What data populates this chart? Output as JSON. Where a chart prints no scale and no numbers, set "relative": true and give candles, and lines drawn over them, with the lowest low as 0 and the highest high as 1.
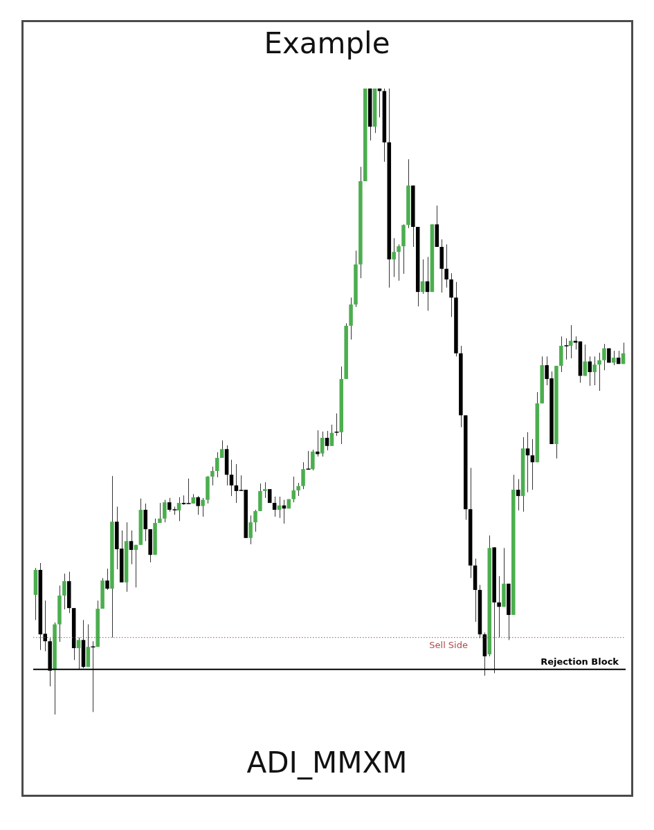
{
  "chart_data": {
    "type": "candlestick",
    "title": "Example",
    "relative": true,
    "categories": [
      null,
      null,
      null,
      null,
      null,
      null,
      null,
      null,
      null,
      null,
      null,
      null,
      null,
      null,
      null,
      null,
      null,
      null,
      null,
      null,
      null,
      null,
      null,
      null,
      null,
      null,
      null,
      null,
      null,
      null,
      null,
      null,
      null,
      null,
      null,
      null,
      null,
      null,
      null,
      null,
      null,
      null,
      null,
      null,
      null,
      null,
      null,
      null,
      null,
      null,
      null,
      null,
      null,
      null,
      null,
      null,
      null,
      null,
      null,
      null,
      null,
      null,
      null,
      null,
      null,
      null,
      null,
      null,
      null,
      null,
      null,
      null,
      null,
      null,
      null,
      null,
      null,
      null,
      null,
      null,
      null,
      null,
      null,
      null,
      null,
      null,
      null,
      null,
      null,
      null,
      null,
      null,
      null,
      null,
      null,
      null,
      null,
      null,
      null,
      null,
      null,
      null,
      null,
      null,
      null,
      null,
      null,
      null,
      null,
      null,
      null,
      null,
      null,
      null,
      null,
      null,
      null,
      null,
      null,
      null,
      null,
      null,
      null,
      null
    ],
    "ohlc": [
      [
        0.191,
        0.234,
        0.151,
        0.231
      ],
      [
        0.231,
        0.242,
        0.103,
        0.128
      ],
      [
        0.129,
        0.182,
        0.101,
        0.117
      ],
      [
        0.117,
        0.122,
        0.045,
        0.07
      ],
      [
        0.071,
        0.147,
        0,
        0.144
      ],
      [
        0.144,
        0.206,
        0.116,
        0.19
      ],
      [
        0.19,
        0.225,
        0.168,
        0.213
      ],
      [
        0.213,
        0.228,
        0.162,
        0.17
      ],
      [
        0.17,
        0.17,
        0.087,
        0.106
      ],
      [
        0.106,
        0.123,
        0.072,
        0.119
      ],
      [
        0.119,
        0.151,
        0.074,
        0.076
      ],
      [
        0.076,
        0.144,
        0.076,
        0.108
      ],
      [
        0.108,
        0.117,
        0.004,
        0.108
      ],
      [
        0.108,
        0.182,
        0.108,
        0.169
      ],
      [
        0.169,
        0.218,
        0.169,
        0.214
      ],
      [
        0.214,
        0.233,
        0.199,
        0.201
      ],
      [
        0.201,
        0.381,
        0.123,
        0.308
      ],
      [
        0.308,
        0.332,
        0.232,
        0.264
      ],
      [
        0.265,
        0.294,
        0.211,
        0.211
      ],
      [
        0.211,
        0.307,
        0.196,
        0.277
      ],
      [
        0.277,
        0.294,
        0.24,
        0.263
      ],
      [
        0.263,
        0.271,
        0.203,
        0.271
      ],
      [
        0.271,
        0.345,
        0.271,
        0.327
      ],
      [
        0.327,
        0.337,
        0.277,
        0.296
      ],
      [
        0.296,
        0.296,
        0.243,
        0.255
      ],
      [
        0.255,
        0.313,
        0.255,
        0.306
      ],
      [
        0.306,
        0.338,
        0.306,
        0.313
      ],
      [
        0.313,
        0.343,
        0.307,
        0.339
      ],
      [
        0.339,
        0.346,
        0.324,
        0.327
      ],
      [
        0.327,
        0.332,
        0.319,
        0.327
      ],
      [
        0.326,
        0.347,
        0.309,
        0.338
      ],
      [
        0.338,
        0.35,
        0.335,
        0.336
      ],
      [
        0.337,
        0.377,
        0.337,
        0.337
      ],
      [
        0.337,
        0.352,
        0.337,
        0.347
      ],
      [
        0.347,
        0.349,
        0.319,
        0.333
      ],
      [
        0.333,
        0.346,
        0.316,
        0.343
      ],
      [
        0.343,
        0.381,
        0.337,
        0.38
      ],
      [
        0.38,
        0.396,
        0.366,
        0.389
      ],
      [
        0.389,
        0.419,
        0.379,
        0.41
      ],
      [
        0.41,
        0.438,
        0.41,
        0.424
      ],
      [
        0.424,
        0.43,
        0.366,
        0.383
      ],
      [
        0.383,
        0.407,
        0.349,
        0.366
      ],
      [
        0.366,
        0.4,
        0.338,
        0.357
      ],
      [
        0.358,
        0.382,
        0.357,
        0.358
      ],
      [
        0.359,
        0.359,
        0.282,
        0.282
      ],
      [
        0.282,
        0.318,
        0.272,
        0.307
      ],
      [
        0.307,
        0.327,
        0.292,
        0.325
      ],
      [
        0.325,
        0.369,
        0.325,
        0.357
      ],
      [
        0.357,
        0.371,
        0.346,
        0.36
      ],
      [
        0.36,
        0.36,
        0.338,
        0.338
      ],
      [
        0.338,
        0.348,
        0.316,
        0.327
      ],
      [
        0.327,
        0.348,
        0.314,
        0.334
      ],
      [
        0.334,
        0.343,
        0.305,
        0.329
      ],
      [
        0.329,
        0.344,
        0.329,
        0.344
      ],
      [
        0.344,
        0.38,
        0.339,
        0.358
      ],
      [
        0.358,
        0.37,
        0.349,
        0.365
      ],
      [
        0.365,
        0.403,
        0.36,
        0.392
      ],
      [
        0.392,
        0.421,
        0.391,
        0.392
      ],
      [
        0.392,
        0.423,
        0.39,
        0.42
      ],
      [
        0.42,
        0.454,
        0.412,
        0.416
      ],
      [
        0.417,
        0.452,
        0.412,
        0.442
      ],
      [
        0.442,
        0.453,
        0.422,
        0.429
      ],
      [
        0.429,
        0.463,
        0.429,
        0.45
      ],
      [
        0.451,
        0.481,
        0.445,
        0.451
      ],
      [
        0.451,
        0.556,
        0.432,
        0.536
      ],
      [
        0.536,
        0.625,
        0.536,
        0.621
      ],
      [
        0.621,
        0.666,
        0.599,
        0.655
      ],
      [
        0.655,
        0.741,
        0.651,
        0.719
      ],
      [
        0.719,
        0.875,
        0.697,
        0.852
      ],
      [
        0.852,
        1,
        0.852,
        1
      ],
      [
        1,
        1,
        0.917,
        0.939
      ],
      [
        0.939,
        1,
        0.929,
        1
      ],
      [
        1,
        1,
        0.954,
        0.996
      ],
      [
        0.996,
        1,
        0.883,
        0.914
      ],
      [
        0.914,
        1,
        0.682,
        0.727
      ],
      [
        0.727,
        0.761,
        0.699,
        0.739
      ],
      [
        0.739,
        0.751,
        0.693,
        0.748
      ],
      [
        0.748,
        0.783,
        0.704,
        0.782
      ],
      [
        0.782,
        0.887,
        0.777,
        0.845
      ],
      [
        0.845,
        0.845,
        0.747,
        0.779
      ],
      [
        0.779,
        0.779,
        0.652,
        0.675
      ],
      [
        0.675,
        0.727,
        0.672,
        0.692
      ],
      [
        0.692,
        0.731,
        0.645,
        0.675
      ],
      [
        0.675,
        0.783,
        0.675,
        0.783
      ],
      [
        0.783,
        0.813,
        0.747,
        0.747
      ],
      [
        0.747,
        0.759,
        0.674,
        0.712
      ],
      [
        0.712,
        0.751,
        0.682,
        0.695
      ],
      [
        0.695,
        0.705,
        0.635,
        0.666
      ],
      [
        0.666,
        0.691,
        0.572,
        0.577
      ],
      [
        0.577,
        0.589,
        0.459,
        0.478
      ],
      [
        0.478,
        0.478,
        0.311,
        0.328
      ],
      [
        0.328,
        0.394,
        0.218,
        0.238
      ],
      [
        0.238,
        0.249,
        0.148,
        0.199
      ],
      [
        0.199,
        0.207,
        0.122,
        0.128
      ],
      [
        0.128,
        0.131,
        0.062,
        0.093
      ],
      [
        0.096,
        0.286,
        0.093,
        0.266
      ],
      [
        0.267,
        0.267,
        0.066,
        0.179
      ],
      [
        0.179,
        0.221,
        0.123,
        0.172
      ],
      [
        0.172,
        0.266,
        0.172,
        0.209
      ],
      [
        0.209,
        0.209,
        0.119,
        0.159
      ],
      [
        0.159,
        0.383,
        0.159,
        0.359
      ],
      [
        0.359,
        0.376,
        0.326,
        0.349
      ],
      [
        0.349,
        0.443,
        0.324,
        0.425
      ],
      [
        0.425,
        0.451,
        0.355,
        0.414
      ],
      [
        0.414,
        0.44,
        0.359,
        0.403
      ],
      [
        0.403,
        0.515,
        0.403,
        0.497
      ],
      [
        0.497,
        0.572,
        0.497,
        0.558
      ],
      [
        0.558,
        0.572,
        0.526,
        0.536
      ],
      [
        0.537,
        0.548,
        0.432,
        0.432
      ],
      [
        0.432,
        0.557,
        0.409,
        0.557
      ],
      [
        0.557,
        0.604,
        0.547,
        0.589
      ],
      [
        0.589,
        0.601,
        0.567,
        0.589
      ],
      [
        0.589,
        0.622,
        0.569,
        0.597
      ],
      [
        0.597,
        0.604,
        0.583,
        0.594
      ],
      [
        0.596,
        0.596,
        0.53,
        0.541
      ],
      [
        0.541,
        0.591,
        0.541,
        0.564
      ],
      [
        0.564,
        0.572,
        0.525,
        0.547
      ],
      [
        0.547,
        0.572,
        0.526,
        0.559
      ],
      [
        0.559,
        0.578,
        0.517,
        0.566
      ],
      [
        0.566,
        0.592,
        0.55,
        0.585
      ],
      [
        0.585,
        0.585,
        0.562,
        0.562
      ],
      [
        0.562,
        0.581,
        0.558,
        0.57
      ],
      [
        0.57,
        0.581,
        0.56,
        0.56
      ],
      [
        0.56,
        0.594,
        0.56,
        0.577
      ]
    ],
    "colors": [
      "#4cae4f",
      "#000000",
      "#000000",
      "#000000",
      "#4cae4f",
      "#4cae4f",
      "#4cae4f",
      "#000000",
      "#000000",
      "#4cae4f",
      "#000000",
      "#4cae4f",
      "#000000",
      "#4cae4f",
      "#4cae4f",
      "#000000",
      "#4cae4f",
      "#000000",
      "#000000",
      "#4cae4f",
      "#000000",
      "#4cae4f",
      "#4cae4f",
      "#000000",
      "#000000",
      "#4cae4f",
      "#4cae4f",
      "#4cae4f",
      "#000000",
      "#000000",
      "#4cae4f",
      "#000000",
      "#000000",
      "#4cae4f",
      "#000000",
      "#4cae4f",
      "#4cae4f",
      "#4cae4f",
      "#4cae4f",
      "#4cae4f",
      "#000000",
      "#000000",
      "#000000",
      "#000000",
      "#000000",
      "#4cae4f",
      "#4cae4f",
      "#4cae4f",
      "#4cae4f",
      "#000000",
      "#000000",
      "#4cae4f",
      "#000000",
      "#4cae4f",
      "#4cae4f",
      "#4cae4f",
      "#4cae4f",
      "#000000",
      "#4cae4f",
      "#000000",
      "#4cae4f",
      "#000000",
      "#4cae4f",
      "#000000",
      "#4cae4f",
      "#4cae4f",
      "#4cae4f",
      "#4cae4f",
      "#4cae4f",
      "#4cae4f",
      "#000000",
      "#4cae4f",
      "#000000",
      "#000000",
      "#000000",
      "#4cae4f",
      "#4cae4f",
      "#4cae4f",
      "#4cae4f",
      "#000000",
      "#000000",
      "#4cae4f",
      "#000000",
      "#4cae4f",
      "#000000",
      "#000000",
      "#000000",
      "#000000",
      "#000000",
      "#000000",
      "#000000",
      "#000000",
      "#000000",
      "#000000",
      "#000000",
      "#4cae4f",
      "#000000",
      "#000000",
      "#4cae4f",
      "#000000",
      "#4cae4f",
      "#000000",
      "#4cae4f",
      "#000000",
      "#000000",
      "#4cae4f",
      "#4cae4f",
      "#000000",
      "#000000",
      "#4cae4f",
      "#4cae4f",
      "#000000",
      "#4cae4f",
      "#000000",
      "#000000",
      "#4cae4f",
      "#000000",
      "#4cae4f",
      "#4cae4f",
      "#4cae4f",
      "#000000",
      "#4cae4f",
      "#000000",
      "#4cae4f"
    ],
    "ref_lines": [
      {
        "axis": "y",
        "value": 0.123,
        "label": "Sell Side",
        "color": "#b04a4a",
        "line_style": "dotted"
      },
      {
        "axis": "y",
        "value": 0.072,
        "label": "Rejection Block",
        "color": "#000000",
        "line_style": "solid"
      }
    ],
    "annotations": [
      "ADI_MMXM"
    ]
  }
}
